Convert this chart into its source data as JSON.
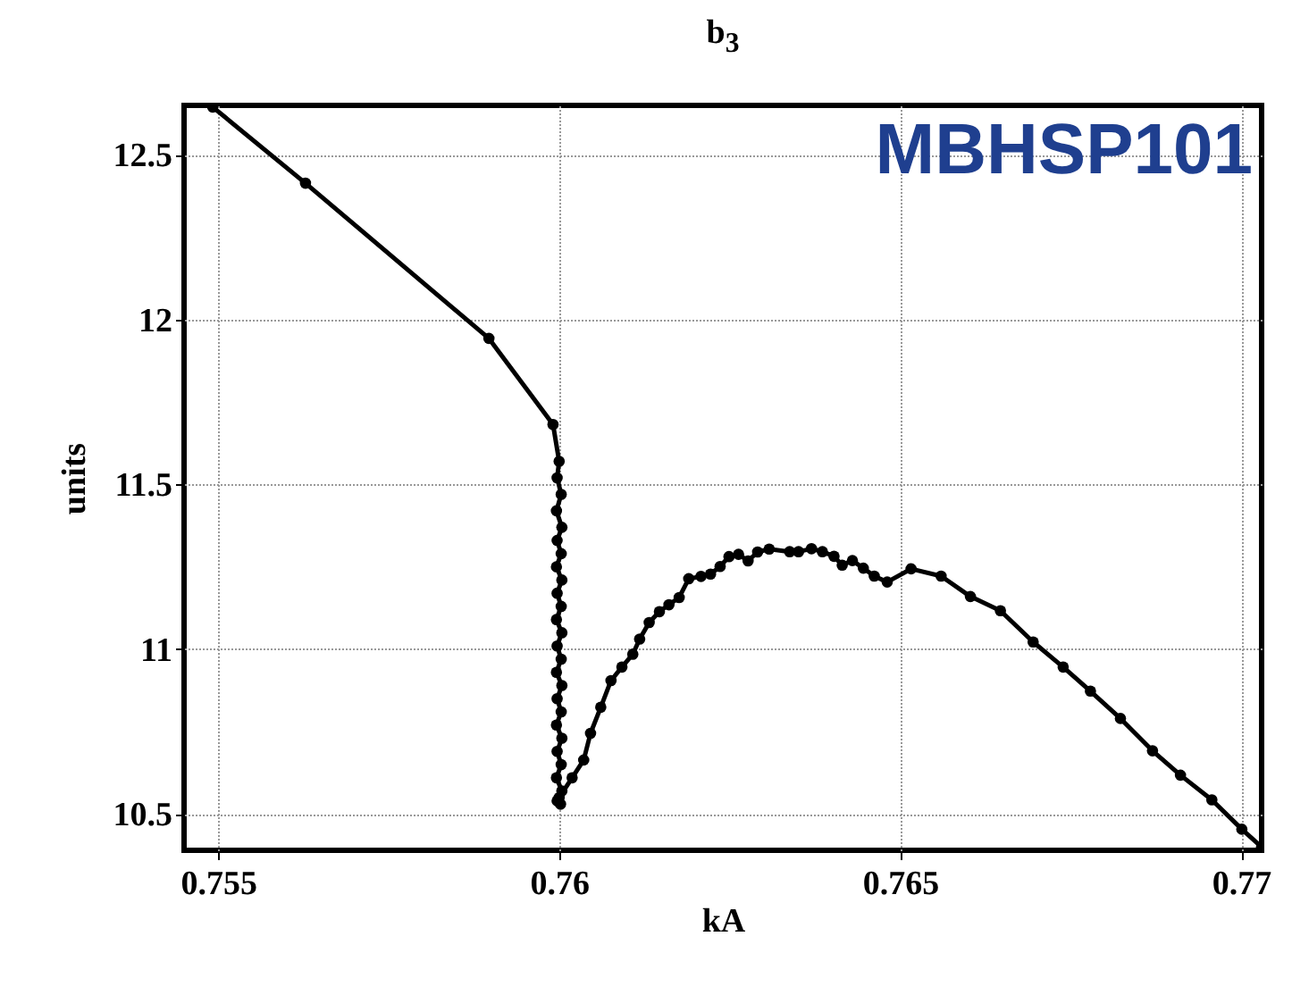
{
  "chart_data": {
    "type": "line",
    "title": "b$_{3}$",
    "xlabel": "kA",
    "ylabel": "units",
    "annotations": [
      "MBHSP101"
    ],
    "x": [
      0.75492,
      0.75628,
      0.75897,
      0.75991,
      0.76,
      0.75997,
      0.76003,
      0.75996,
      0.76004,
      0.75997,
      0.76003,
      0.75996,
      0.76004,
      0.75997,
      0.76003,
      0.75996,
      0.76004,
      0.75997,
      0.76003,
      0.75996,
      0.76004,
      0.75997,
      0.76003,
      0.75996,
      0.76004,
      0.75997,
      0.76003,
      0.75996,
      0.76004,
      0.75997,
      0.76002,
      0.76,
      0.76019,
      0.76036,
      0.76046,
      0.76061,
      0.76076,
      0.76092,
      0.76108,
      0.76118,
      0.76132,
      0.76147,
      0.76161,
      0.76176,
      0.7619,
      0.76208,
      0.76222,
      0.76236,
      0.76249,
      0.76263,
      0.76277,
      0.76291,
      0.76308,
      0.76338,
      0.76351,
      0.7637,
      0.76386,
      0.76403,
      0.76415,
      0.7643,
      0.76446,
      0.76462,
      0.76481,
      0.76516,
      0.7656,
      0.76603,
      0.76647,
      0.76695,
      0.76739,
      0.76779,
      0.76823,
      0.7687,
      0.76911,
      0.76957,
      0.77001,
      0.7703
    ],
    "series": [
      {
        "color": "#000000",
        "values": [
          12.645,
          12.414,
          11.943,
          11.682,
          11.57,
          11.52,
          11.47,
          11.42,
          11.37,
          11.33,
          11.29,
          11.25,
          11.21,
          11.17,
          11.13,
          11.09,
          11.05,
          11.01,
          10.97,
          10.93,
          10.89,
          10.85,
          10.81,
          10.77,
          10.73,
          10.69,
          10.65,
          10.61,
          10.57,
          10.54,
          10.53,
          10.55,
          10.61,
          10.664,
          10.745,
          10.824,
          10.905,
          10.946,
          10.985,
          11.031,
          11.081,
          11.114,
          11.135,
          11.157,
          11.214,
          11.221,
          11.228,
          11.251,
          11.281,
          11.288,
          11.268,
          11.295,
          11.304,
          11.296,
          11.296,
          11.305,
          11.296,
          11.282,
          11.255,
          11.269,
          11.246,
          11.222,
          11.204,
          11.244,
          11.222,
          11.16,
          11.117,
          11.022,
          10.946,
          10.873,
          10.79,
          10.692,
          10.618,
          10.543,
          10.454,
          10.4
        ]
      }
    ],
    "xlim": [
      0.7545,
      0.7703
    ],
    "ylim": [
      10.39,
      12.65
    ],
    "xticks": [
      0.755,
      0.76,
      0.765,
      0.77
    ],
    "yticks": [
      10.5,
      11,
      11.5,
      12,
      12.5
    ],
    "grid": true,
    "marker": "circle",
    "line_style": "solid"
  }
}
